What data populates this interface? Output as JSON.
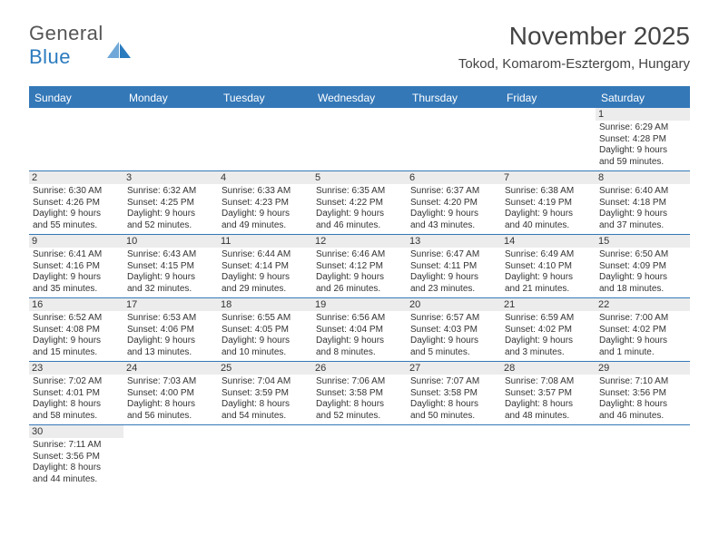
{
  "logo": {
    "text1": "General",
    "text2": "Blue"
  },
  "title": "November 2025",
  "location": "Tokod, Komarom-Esztergom, Hungary",
  "colors": {
    "header_bg": "#3478b8",
    "header_text": "#ffffff",
    "daynum_bg": "#ececec",
    "border": "#3478b8",
    "logo_gray": "#555555",
    "logo_blue": "#2b7bbf"
  },
  "weekdays": [
    "Sunday",
    "Monday",
    "Tuesday",
    "Wednesday",
    "Thursday",
    "Friday",
    "Saturday"
  ],
  "weeks": [
    [
      null,
      null,
      null,
      null,
      null,
      null,
      {
        "n": "1",
        "sr": "Sunrise: 6:29 AM",
        "ss": "Sunset: 4:28 PM",
        "d1": "Daylight: 9 hours",
        "d2": "and 59 minutes."
      }
    ],
    [
      {
        "n": "2",
        "sr": "Sunrise: 6:30 AM",
        "ss": "Sunset: 4:26 PM",
        "d1": "Daylight: 9 hours",
        "d2": "and 55 minutes."
      },
      {
        "n": "3",
        "sr": "Sunrise: 6:32 AM",
        "ss": "Sunset: 4:25 PM",
        "d1": "Daylight: 9 hours",
        "d2": "and 52 minutes."
      },
      {
        "n": "4",
        "sr": "Sunrise: 6:33 AM",
        "ss": "Sunset: 4:23 PM",
        "d1": "Daylight: 9 hours",
        "d2": "and 49 minutes."
      },
      {
        "n": "5",
        "sr": "Sunrise: 6:35 AM",
        "ss": "Sunset: 4:22 PM",
        "d1": "Daylight: 9 hours",
        "d2": "and 46 minutes."
      },
      {
        "n": "6",
        "sr": "Sunrise: 6:37 AM",
        "ss": "Sunset: 4:20 PM",
        "d1": "Daylight: 9 hours",
        "d2": "and 43 minutes."
      },
      {
        "n": "7",
        "sr": "Sunrise: 6:38 AM",
        "ss": "Sunset: 4:19 PM",
        "d1": "Daylight: 9 hours",
        "d2": "and 40 minutes."
      },
      {
        "n": "8",
        "sr": "Sunrise: 6:40 AM",
        "ss": "Sunset: 4:18 PM",
        "d1": "Daylight: 9 hours",
        "d2": "and 37 minutes."
      }
    ],
    [
      {
        "n": "9",
        "sr": "Sunrise: 6:41 AM",
        "ss": "Sunset: 4:16 PM",
        "d1": "Daylight: 9 hours",
        "d2": "and 35 minutes."
      },
      {
        "n": "10",
        "sr": "Sunrise: 6:43 AM",
        "ss": "Sunset: 4:15 PM",
        "d1": "Daylight: 9 hours",
        "d2": "and 32 minutes."
      },
      {
        "n": "11",
        "sr": "Sunrise: 6:44 AM",
        "ss": "Sunset: 4:14 PM",
        "d1": "Daylight: 9 hours",
        "d2": "and 29 minutes."
      },
      {
        "n": "12",
        "sr": "Sunrise: 6:46 AM",
        "ss": "Sunset: 4:12 PM",
        "d1": "Daylight: 9 hours",
        "d2": "and 26 minutes."
      },
      {
        "n": "13",
        "sr": "Sunrise: 6:47 AM",
        "ss": "Sunset: 4:11 PM",
        "d1": "Daylight: 9 hours",
        "d2": "and 23 minutes."
      },
      {
        "n": "14",
        "sr": "Sunrise: 6:49 AM",
        "ss": "Sunset: 4:10 PM",
        "d1": "Daylight: 9 hours",
        "d2": "and 21 minutes."
      },
      {
        "n": "15",
        "sr": "Sunrise: 6:50 AM",
        "ss": "Sunset: 4:09 PM",
        "d1": "Daylight: 9 hours",
        "d2": "and 18 minutes."
      }
    ],
    [
      {
        "n": "16",
        "sr": "Sunrise: 6:52 AM",
        "ss": "Sunset: 4:08 PM",
        "d1": "Daylight: 9 hours",
        "d2": "and 15 minutes."
      },
      {
        "n": "17",
        "sr": "Sunrise: 6:53 AM",
        "ss": "Sunset: 4:06 PM",
        "d1": "Daylight: 9 hours",
        "d2": "and 13 minutes."
      },
      {
        "n": "18",
        "sr": "Sunrise: 6:55 AM",
        "ss": "Sunset: 4:05 PM",
        "d1": "Daylight: 9 hours",
        "d2": "and 10 minutes."
      },
      {
        "n": "19",
        "sr": "Sunrise: 6:56 AM",
        "ss": "Sunset: 4:04 PM",
        "d1": "Daylight: 9 hours",
        "d2": "and 8 minutes."
      },
      {
        "n": "20",
        "sr": "Sunrise: 6:57 AM",
        "ss": "Sunset: 4:03 PM",
        "d1": "Daylight: 9 hours",
        "d2": "and 5 minutes."
      },
      {
        "n": "21",
        "sr": "Sunrise: 6:59 AM",
        "ss": "Sunset: 4:02 PM",
        "d1": "Daylight: 9 hours",
        "d2": "and 3 minutes."
      },
      {
        "n": "22",
        "sr": "Sunrise: 7:00 AM",
        "ss": "Sunset: 4:02 PM",
        "d1": "Daylight: 9 hours",
        "d2": "and 1 minute."
      }
    ],
    [
      {
        "n": "23",
        "sr": "Sunrise: 7:02 AM",
        "ss": "Sunset: 4:01 PM",
        "d1": "Daylight: 8 hours",
        "d2": "and 58 minutes."
      },
      {
        "n": "24",
        "sr": "Sunrise: 7:03 AM",
        "ss": "Sunset: 4:00 PM",
        "d1": "Daylight: 8 hours",
        "d2": "and 56 minutes."
      },
      {
        "n": "25",
        "sr": "Sunrise: 7:04 AM",
        "ss": "Sunset: 3:59 PM",
        "d1": "Daylight: 8 hours",
        "d2": "and 54 minutes."
      },
      {
        "n": "26",
        "sr": "Sunrise: 7:06 AM",
        "ss": "Sunset: 3:58 PM",
        "d1": "Daylight: 8 hours",
        "d2": "and 52 minutes."
      },
      {
        "n": "27",
        "sr": "Sunrise: 7:07 AM",
        "ss": "Sunset: 3:58 PM",
        "d1": "Daylight: 8 hours",
        "d2": "and 50 minutes."
      },
      {
        "n": "28",
        "sr": "Sunrise: 7:08 AM",
        "ss": "Sunset: 3:57 PM",
        "d1": "Daylight: 8 hours",
        "d2": "and 48 minutes."
      },
      {
        "n": "29",
        "sr": "Sunrise: 7:10 AM",
        "ss": "Sunset: 3:56 PM",
        "d1": "Daylight: 8 hours",
        "d2": "and 46 minutes."
      }
    ],
    [
      {
        "n": "30",
        "sr": "Sunrise: 7:11 AM",
        "ss": "Sunset: 3:56 PM",
        "d1": "Daylight: 8 hours",
        "d2": "and 44 minutes."
      },
      null,
      null,
      null,
      null,
      null,
      null
    ]
  ]
}
